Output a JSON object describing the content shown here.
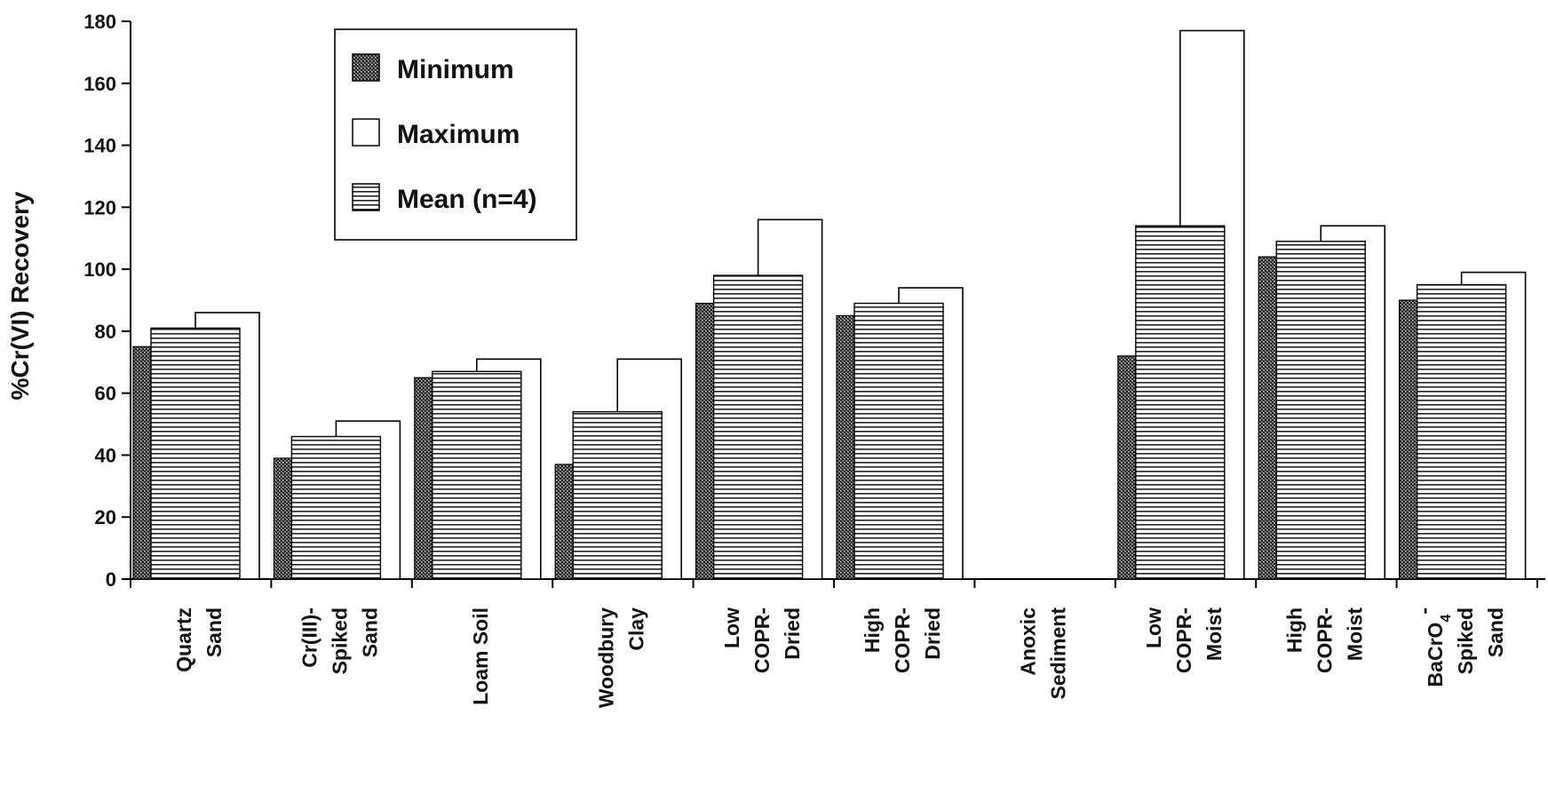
{
  "chart_data": {
    "type": "bar",
    "title": "",
    "xlabel": "",
    "ylabel": "%Cr(VI) Recovery",
    "ylim": [
      0,
      180
    ],
    "yticks": [
      0,
      20,
      40,
      60,
      80,
      100,
      120,
      140,
      160,
      180
    ],
    "grid": false,
    "legend_position": "top-left",
    "categories": [
      [
        "Quartz",
        "Sand"
      ],
      [
        "Cr(III)-",
        "Spiked",
        "Sand"
      ],
      [
        "Loam Soil"
      ],
      [
        "Woodbury",
        "Clay"
      ],
      [
        "Low",
        "COPR-",
        "Dried"
      ],
      [
        "High",
        "COPR-",
        "Dried"
      ],
      [
        "Anoxic",
        "Sediment"
      ],
      [
        "Low",
        "COPR-",
        "Moist"
      ],
      [
        "High",
        "COPR-",
        "Moist"
      ],
      [
        "BaCrO4-",
        "Spiked",
        "Sand"
      ]
    ],
    "series": [
      {
        "name": "Minimum",
        "pattern": "dots",
        "values": [
          75,
          39,
          65,
          37,
          89,
          85,
          0,
          72,
          104,
          90
        ]
      },
      {
        "name": "Maximum",
        "pattern": "none",
        "values": [
          86,
          51,
          71,
          71,
          116,
          94,
          0,
          177,
          114,
          99
        ]
      },
      {
        "name": "Mean (n=4)",
        "pattern": "horizontal-lines",
        "values": [
          81,
          46,
          67,
          54,
          98,
          89,
          0,
          114,
          109,
          95
        ]
      }
    ]
  }
}
